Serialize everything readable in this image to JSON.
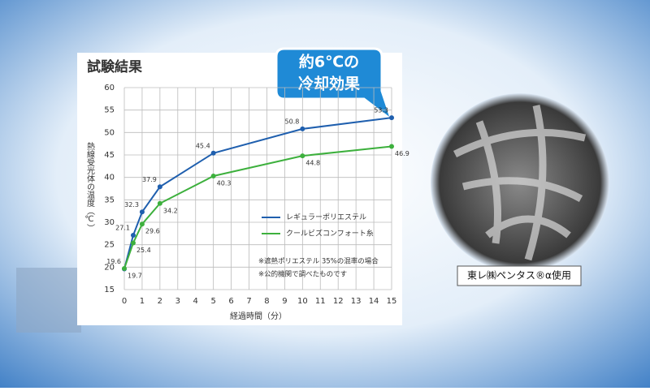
{
  "chart_data": {
    "type": "line",
    "title": "試験結果",
    "x_label": "経過時間（分）",
    "y_label": "熱線受光体の温度（℃）",
    "x": [
      0,
      0.5,
      1,
      2,
      5,
      10,
      15
    ],
    "xlim": [
      0,
      15
    ],
    "xticks": [
      0,
      1,
      2,
      3,
      4,
      5,
      6,
      7,
      8,
      9,
      10,
      11,
      12,
      13,
      14,
      15
    ],
    "ylim": [
      15,
      60
    ],
    "yticks": [
      15,
      20,
      25,
      30,
      35,
      40,
      45,
      50,
      55,
      60
    ],
    "series": [
      {
        "name": "レギュラーポリエステル",
        "color": "#1f5fae",
        "values": [
          19.6,
          27.1,
          32.3,
          37.9,
          45.4,
          50.8,
          53.3
        ]
      },
      {
        "name": "クールビズコンフォート糸",
        "color": "#3db03d",
        "values": [
          19.7,
          25.4,
          29.6,
          34.2,
          40.3,
          44.8,
          46.9
        ]
      }
    ],
    "notes": [
      "※遮熱ポリエステル 35%の混率の場合",
      "※公的機関で調べたものです"
    ],
    "callout": [
      "約6℃の",
      "冷却効果"
    ]
  },
  "photo": {
    "caption": "東レ㈱ペンタス®α使用"
  }
}
